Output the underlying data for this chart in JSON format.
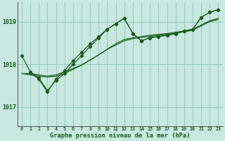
{
  "xlabel": "Graphe pression niveau de la mer (hPa)",
  "xlim": [
    -0.5,
    23.5
  ],
  "ylim": [
    1016.55,
    1019.45
  ],
  "yticks": [
    1017,
    1018,
    1019
  ],
  "xticks": [
    0,
    1,
    2,
    3,
    4,
    5,
    6,
    7,
    8,
    9,
    10,
    11,
    12,
    13,
    14,
    15,
    16,
    17,
    18,
    19,
    20,
    21,
    22,
    23
  ],
  "bg_color": "#c8e8e0",
  "grid_color": "#99ccbb",
  "line_color": "#1a5c1a",
  "line1_x": [
    0,
    1,
    2,
    3,
    4,
    5,
    6,
    7,
    8,
    9,
    10,
    11,
    12,
    13,
    14,
    15,
    16,
    17,
    18,
    19,
    20,
    21,
    22,
    23
  ],
  "line1_y": [
    1018.2,
    1017.82,
    1017.68,
    1017.38,
    1017.62,
    1017.78,
    1018.0,
    1018.2,
    1018.42,
    1018.62,
    1018.82,
    1018.95,
    1019.08,
    1018.72,
    1018.55,
    1018.62,
    1018.65,
    1018.68,
    1018.72,
    1018.78,
    1018.82,
    1019.1,
    1019.22,
    1019.28
  ],
  "line2_x": [
    0,
    1,
    2,
    3,
    4,
    5,
    6,
    7,
    8,
    9,
    10,
    11,
    12,
    13,
    14,
    15,
    16,
    17,
    18,
    19,
    20,
    21,
    22,
    23
  ],
  "line2_y": [
    1017.78,
    1017.78,
    1017.75,
    1017.72,
    1017.75,
    1017.82,
    1017.9,
    1017.98,
    1018.1,
    1018.22,
    1018.35,
    1018.48,
    1018.58,
    1018.62,
    1018.65,
    1018.68,
    1018.7,
    1018.72,
    1018.75,
    1018.78,
    1018.82,
    1018.92,
    1019.02,
    1019.08
  ],
  "line3_x": [
    0,
    1,
    2,
    3,
    4,
    5,
    6,
    7,
    8,
    9,
    10,
    11,
    12,
    13,
    14,
    15,
    16,
    17,
    18,
    19,
    20,
    21,
    22,
    23
  ],
  "line3_y": [
    1017.78,
    1017.75,
    1017.72,
    1017.7,
    1017.72,
    1017.78,
    1017.88,
    1017.98,
    1018.1,
    1018.22,
    1018.35,
    1018.45,
    1018.55,
    1018.6,
    1018.63,
    1018.65,
    1018.68,
    1018.7,
    1018.73,
    1018.76,
    1018.8,
    1018.9,
    1019.0,
    1019.05
  ],
  "line4_x": [
    1,
    2,
    3,
    4,
    5,
    6,
    7,
    8,
    9,
    10,
    11,
    12,
    13,
    14,
    15,
    16,
    17,
    18,
    19,
    20,
    21,
    22,
    23
  ],
  "line4_y": [
    1017.8,
    1017.65,
    1017.35,
    1017.65,
    1017.85,
    1018.08,
    1018.28,
    1018.48,
    1018.65,
    1018.82,
    1018.95,
    1019.08,
    1018.72,
    1018.55,
    1018.62,
    1018.65,
    1018.68,
    1018.72,
    1018.78,
    1018.82,
    1019.1,
    1019.22,
    1019.28
  ]
}
